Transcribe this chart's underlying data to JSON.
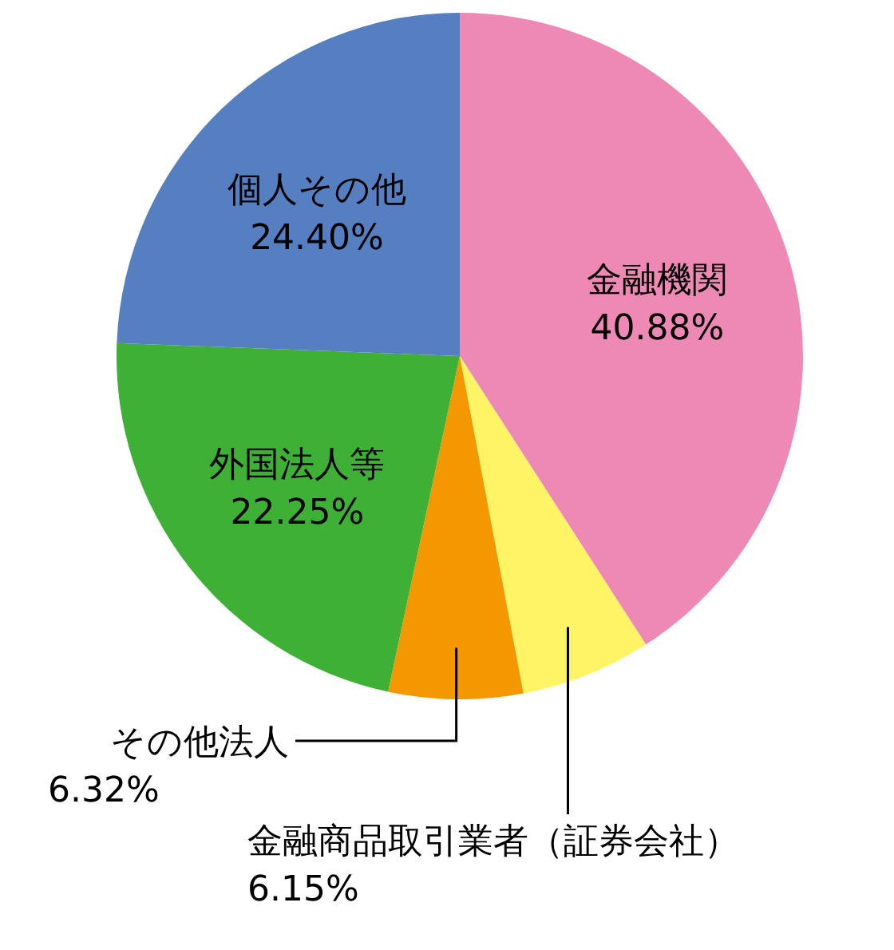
{
  "chart_data": {
    "type": "pie",
    "categories": [
      "金融機関",
      "金融商品取引業者（証券会社）",
      "その他法人",
      "外国法人等",
      "個人その他"
    ],
    "values": [
      40.88,
      6.15,
      6.32,
      22.25,
      24.4
    ],
    "value_labels": [
      "40.88%",
      "6.15%",
      "6.32%",
      "22.25%",
      "24.40%"
    ],
    "colors": [
      "#ee88b4",
      "#fef466",
      "#f39800",
      "#3eb035",
      "#557fc1"
    ]
  }
}
